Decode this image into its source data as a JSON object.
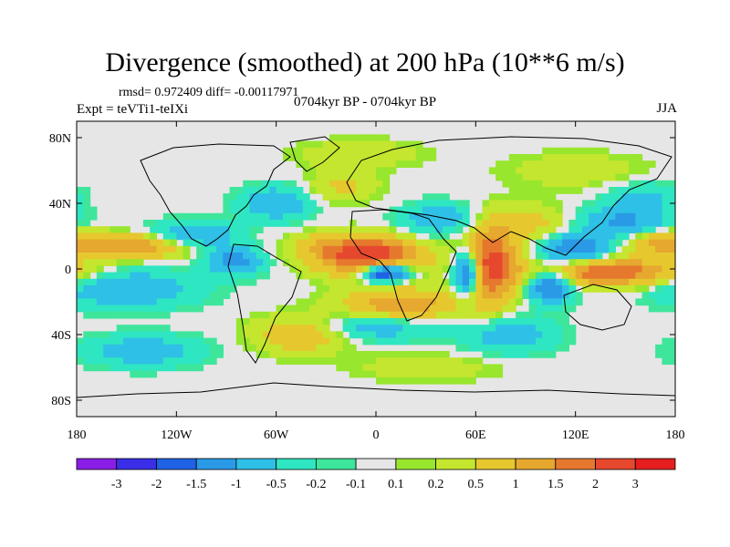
{
  "title": "Divergence (smoothed) at 200 hPa (10**6 m/s)",
  "stats": "rmsd= 0.972409 diff= -0.00117971",
  "experiment": "Expt = teVTi1-teIXi",
  "center_label": "0704kyr BP - 0704kyr BP",
  "season": "JJA",
  "colors": {
    "-3": "#8a1ee6",
    "-2": "#3a2ee6",
    "-1.5": "#1f62e6",
    "-1": "#2a9ae6",
    "-0.5": "#2ec0e6",
    "-0.2": "#2ee6c2",
    "-0.1": "#3ee69c",
    "0": "#e6e6e6",
    "0.1": "#98e62e",
    "0.2": "#c4e62e",
    "0.5": "#e6c82e",
    "1": "#e6a82e",
    "1.5": "#e6782e",
    "2": "#e6482e",
    "3": "#e61e1e"
  },
  "chart_data": {
    "type": "heatmap",
    "title": "Divergence (smoothed) at 200 hPa (10**6 m/s)",
    "x_ticks": [
      "180",
      "120W",
      "60W",
      "0",
      "60E",
      "120E",
      "180"
    ],
    "x_tick_values": [
      -180,
      -120,
      -60,
      0,
      60,
      120,
      180
    ],
    "y_ticks": [
      "80N",
      "40N",
      "0",
      "40S",
      "80S"
    ],
    "y_tick_values": [
      80,
      40,
      0,
      -40,
      -80
    ],
    "xlim": [
      -180,
      180
    ],
    "ylim": [
      -90,
      90
    ],
    "colorbar_labels": [
      "-3",
      "-2",
      "-1.5",
      "-1",
      "-0.5",
      "-0.2",
      "-0.1",
      "0.1",
      "0.2",
      "0.5",
      "1",
      "1.5",
      "2",
      "3"
    ],
    "colorbar_colors": [
      "#8a1ee6",
      "#3a2ee6",
      "#1f62e6",
      "#2a9ae6",
      "#2ec0e6",
      "#2ee6c2",
      "#3ee69c",
      "#e6e6e6",
      "#98e62e",
      "#c4e62e",
      "#e6c82e",
      "#e6a82e",
      "#e6782e",
      "#e6482e",
      "#e61e1e"
    ],
    "blobs": [
      {
        "lon": -5,
        "lat": 8,
        "value": 2.6,
        "lonw": 22,
        "latw": 8
      },
      {
        "lon": 68,
        "lat": 2,
        "value": 2.4,
        "lonw": 12,
        "latw": 16
      },
      {
        "lon": 140,
        "lat": -2,
        "value": 2.0,
        "lonw": 30,
        "latw": 6
      },
      {
        "lon": -150,
        "lat": 14,
        "value": 1.6,
        "lonw": 30,
        "latw": 5
      },
      {
        "lon": 15,
        "lat": -22,
        "value": 1.4,
        "lonw": 25,
        "latw": 7
      },
      {
        "lon": -45,
        "lat": -40,
        "value": 1.0,
        "lonw": 20,
        "latw": 8
      },
      {
        "lon": 170,
        "lat": 18,
        "value": 0.8,
        "lonw": 15,
        "latw": 6
      },
      {
        "lon": 90,
        "lat": 28,
        "value": 0.7,
        "lonw": 20,
        "latw": 8
      },
      {
        "lon": -20,
        "lat": 50,
        "value": 0.6,
        "lonw": 15,
        "latw": 7
      },
      {
        "lon": 5,
        "lat": -2,
        "value": -2.8,
        "lonw": 10,
        "latw": 4
      },
      {
        "lon": 55,
        "lat": -2,
        "value": -2.6,
        "lonw": 6,
        "latw": 10
      },
      {
        "lon": 105,
        "lat": -10,
        "value": -1.8,
        "lonw": 10,
        "latw": 7
      },
      {
        "lon": 120,
        "lat": 12,
        "value": -1.6,
        "lonw": 15,
        "latw": 6
      },
      {
        "lon": 150,
        "lat": 28,
        "value": -1.2,
        "lonw": 20,
        "latw": 7
      },
      {
        "lon": -110,
        "lat": 20,
        "value": -1.2,
        "lonw": 18,
        "latw": 6
      },
      {
        "lon": -85,
        "lat": 5,
        "value": -1.3,
        "lonw": 12,
        "latw": 6
      },
      {
        "lon": -150,
        "lat": -12,
        "value": -1.0,
        "lonw": 30,
        "latw": 8
      },
      {
        "lon": -60,
        "lat": 40,
        "value": -1.0,
        "lonw": 15,
        "latw": 7
      },
      {
        "lon": 40,
        "lat": 30,
        "value": -0.9,
        "lonw": 18,
        "latw": 7
      },
      {
        "lon": 0,
        "lat": -35,
        "value": -0.9,
        "lonw": 25,
        "latw": 6
      },
      {
        "lon": 80,
        "lat": -40,
        "value": -0.8,
        "lonw": 20,
        "latw": 8
      },
      {
        "lon": -140,
        "lat": -50,
        "value": -0.8,
        "lonw": 25,
        "latw": 7
      },
      {
        "lon": -10,
        "lat": 70,
        "value": 0.5,
        "lonw": 25,
        "latw": 6
      },
      {
        "lon": 120,
        "lat": 60,
        "value": 0.4,
        "lonw": 30,
        "latw": 8
      },
      {
        "lon": 160,
        "lat": 45,
        "value": -0.6,
        "lonw": 15,
        "latw": 6
      },
      {
        "lon": -35,
        "lat": 15,
        "value": 0.4,
        "lonw": 15,
        "latw": 5
      },
      {
        "lon": 30,
        "lat": -60,
        "value": 0.4,
        "lonw": 30,
        "latw": 6
      }
    ]
  }
}
